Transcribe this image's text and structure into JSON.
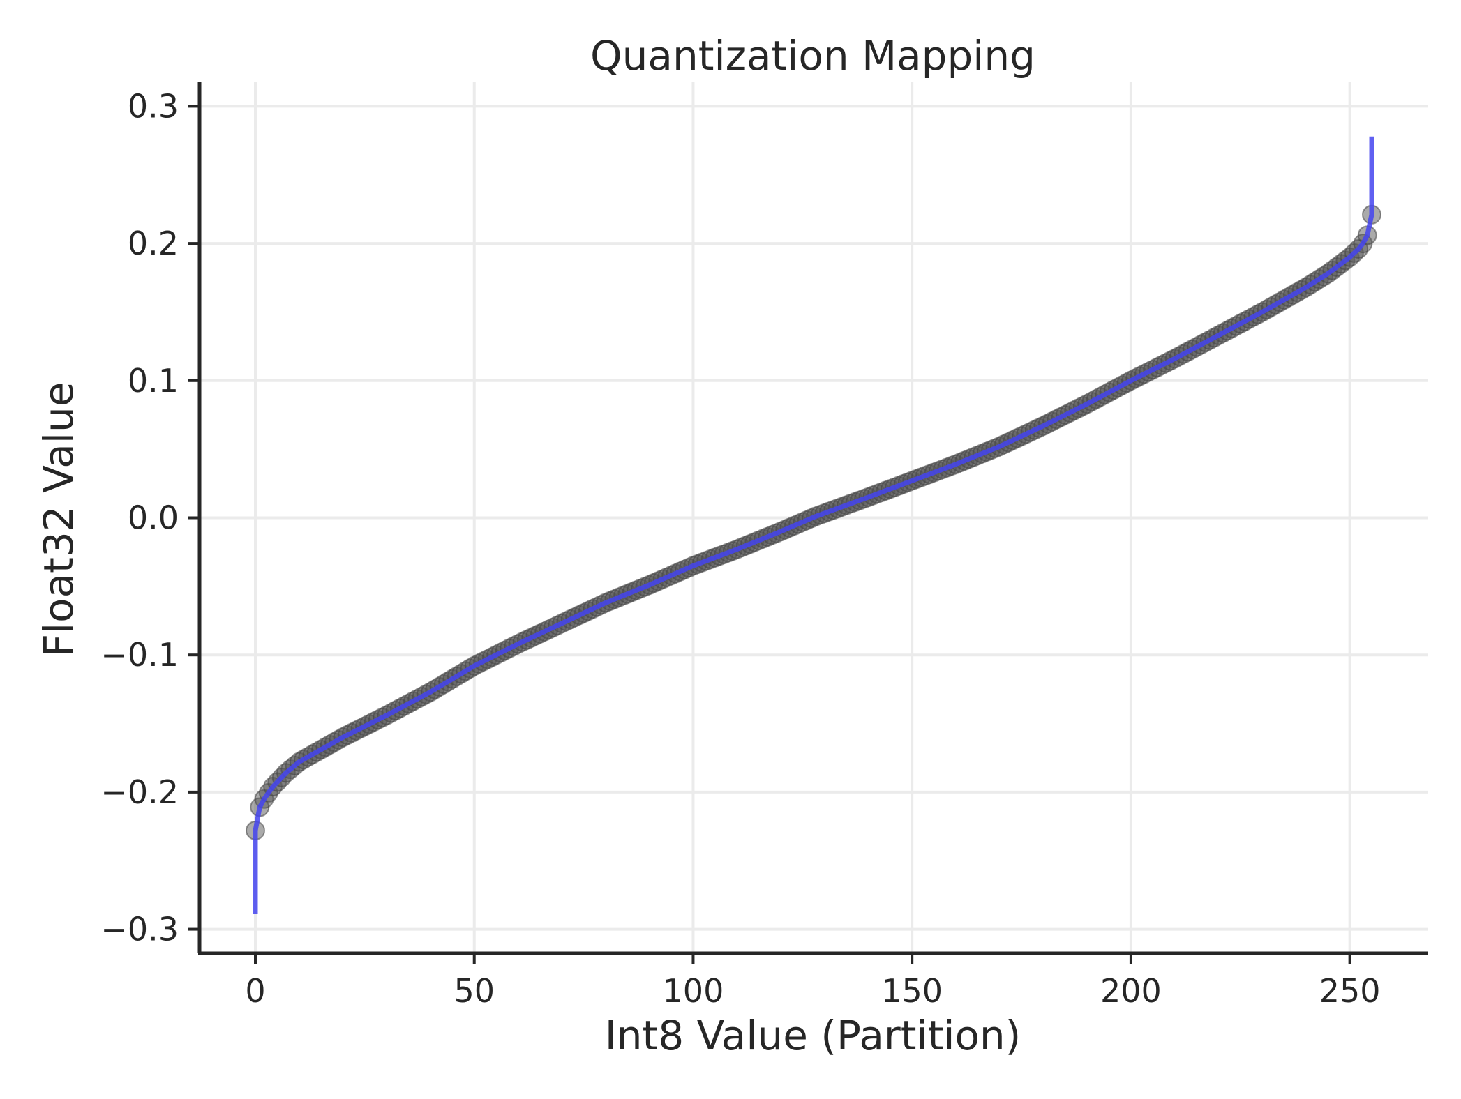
{
  "chart_data": {
    "type": "line",
    "title": "Quantization Mapping",
    "xlabel": "Int8 Value (Partition)",
    "ylabel": "Float32 Value",
    "xlim": [
      -12.75,
      267.75
    ],
    "ylim": [
      -0.3175,
      0.3175
    ],
    "xticks": [
      0,
      50,
      100,
      150,
      200,
      250
    ],
    "xtick_labels": [
      "0",
      "50",
      "100",
      "150",
      "200",
      "250"
    ],
    "yticks": [
      -0.3,
      -0.2,
      -0.1,
      0.0,
      0.1,
      0.2,
      0.3
    ],
    "ytick_labels": [
      "−0.3",
      "−0.2",
      "−0.1",
      "0.0",
      "0.1",
      "0.2",
      "0.3"
    ],
    "grid": true,
    "series": [
      {
        "kind": "line",
        "color": "#4444ee",
        "x_range": [
          0,
          255
        ],
        "curve_points": [
          [
            0,
            -0.289
          ],
          [
            0,
            -0.228
          ],
          [
            1,
            -0.211
          ],
          [
            2,
            -0.205
          ],
          [
            4,
            -0.196
          ],
          [
            7,
            -0.186
          ],
          [
            10,
            -0.178
          ],
          [
            20,
            -0.16
          ],
          [
            30,
            -0.144
          ],
          [
            40,
            -0.127
          ],
          [
            50,
            -0.108
          ],
          [
            60,
            -0.092
          ],
          [
            70,
            -0.077
          ],
          [
            80,
            -0.062
          ],
          [
            90,
            -0.049
          ],
          [
            100,
            -0.035
          ],
          [
            110,
            -0.023
          ],
          [
            120,
            -0.01
          ],
          [
            128,
            0.001
          ],
          [
            140,
            0.015
          ],
          [
            150,
            0.027
          ],
          [
            160,
            0.039
          ],
          [
            170,
            0.052
          ],
          [
            180,
            0.067
          ],
          [
            190,
            0.083
          ],
          [
            200,
            0.1
          ],
          [
            210,
            0.116
          ],
          [
            220,
            0.133
          ],
          [
            230,
            0.15
          ],
          [
            240,
            0.168
          ],
          [
            245,
            0.178
          ],
          [
            250,
            0.19
          ],
          [
            252,
            0.196
          ],
          [
            253,
            0.2
          ],
          [
            254,
            0.206
          ],
          [
            255,
            0.221
          ],
          [
            255,
            0.278
          ]
        ]
      },
      {
        "kind": "scatter",
        "color": "#555555",
        "count": 256
      }
    ]
  }
}
